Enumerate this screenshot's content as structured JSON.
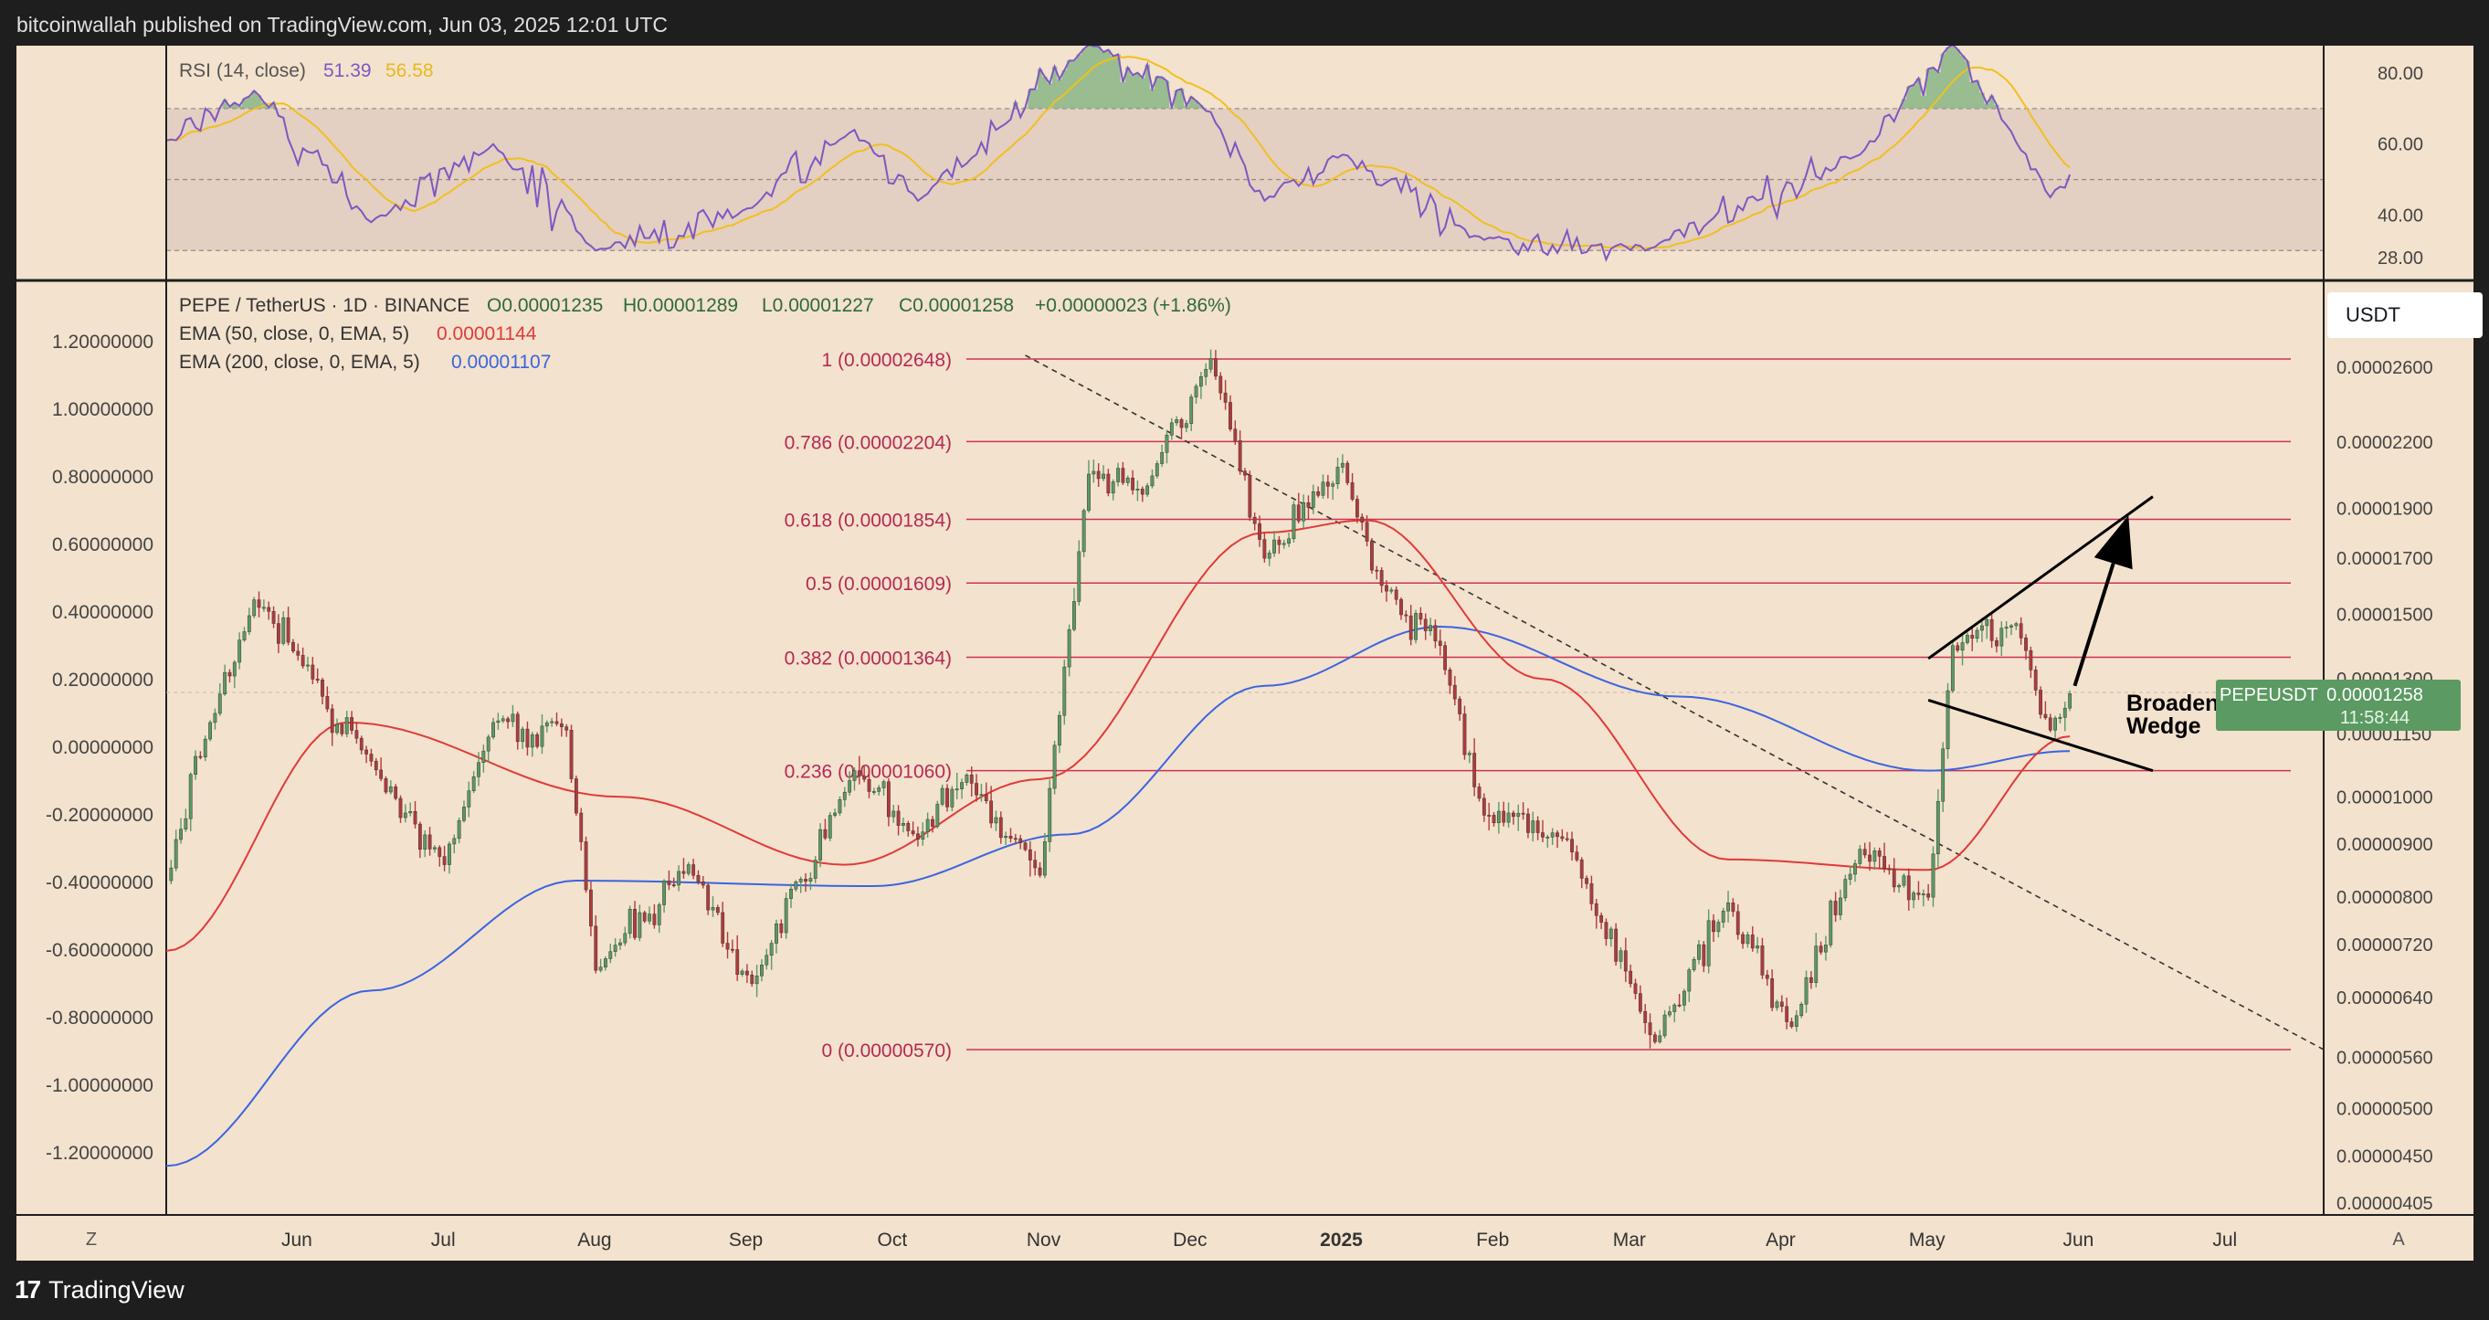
{
  "header": {
    "publisher_line": "bitcoinwallah published on TradingView.com, Jun 03, 2025 12:01 UTC"
  },
  "footer": {
    "brand": "TradingView",
    "brand_mark": "17"
  },
  "rsi_panel": {
    "label": "RSI (14, close)",
    "rsi_value": "51.39",
    "ma_value": "56.58",
    "axis_ticks": [
      "80.00",
      "60.00",
      "40.00",
      "28.00"
    ]
  },
  "main_legend": {
    "symbol": "PEPE / TetherUS · 1D · BINANCE",
    "open": "O0.00001235",
    "high": "H0.00001289",
    "low": "L0.00001227",
    "close": "C0.00001258",
    "change": "+0.00000023 (+1.86%)",
    "ema50_label": "EMA (50, close, 0, EMA, 5)",
    "ema50_value": "0.00001144",
    "ema200_label": "EMA (200, close, 0, EMA, 5)",
    "ema200_value": "0.00001107"
  },
  "left_axis_ticks": [
    "1.20000000",
    "1.00000000",
    "0.80000000",
    "0.60000000",
    "0.40000000",
    "0.20000000",
    "0.00000000",
    "-0.20000000",
    "-0.40000000",
    "-0.60000000",
    "-0.80000000",
    "-1.00000000",
    "-1.20000000"
  ],
  "right_axis": {
    "currency": "USDT",
    "ticks": [
      "0.00002600",
      "0.00002200",
      "0.00001900",
      "0.00001700",
      "0.00001500",
      "0.00001300",
      "0.00001150",
      "0.00001000",
      "0.00000900",
      "0.00000800",
      "0.00000720",
      "0.00000640",
      "0.00000560",
      "0.00000500",
      "0.00000450",
      "0.00000405"
    ],
    "price_tag_symbol": "PEPEUSDT",
    "price_tag_value": "0.00001258",
    "price_tag_countdown": "11:58:44"
  },
  "x_axis": {
    "labels": [
      "Jun",
      "Jul",
      "Aug",
      "Sep",
      "Oct",
      "Nov",
      "Dec",
      "2025",
      "Feb",
      "Mar",
      "Apr",
      "May",
      "Jun",
      "Jul"
    ],
    "left_button": "Z",
    "right_button": "A"
  },
  "fib_levels": [
    {
      "label": "1 (0.00002648)",
      "ratio": 1,
      "price": 2.648e-05
    },
    {
      "label": "0.786 (0.00002204)",
      "ratio": 0.786,
      "price": 2.204e-05
    },
    {
      "label": "0.618 (0.00001854)",
      "ratio": 0.618,
      "price": 1.854e-05
    },
    {
      "label": "0.5 (0.00001609)",
      "ratio": 0.5,
      "price": 1.609e-05
    },
    {
      "label": "0.382 (0.00001364)",
      "ratio": 0.382,
      "price": 1.364e-05
    },
    {
      "label": "0.236 (0.00001060)",
      "ratio": 0.236,
      "price": 1.06e-05
    },
    {
      "label": "0 (0.00000570)",
      "ratio": 0,
      "price": 5.7e-06
    }
  ],
  "annotation": {
    "line1": "Broadening",
    "line2": "Wedge"
  },
  "colors": {
    "background": "#f3e2cd",
    "up_candle": "#5b9a62",
    "down_candle": "#b33a3a",
    "ema50": "#e03a3a",
    "ema200": "#3b64e0",
    "fib": "#cc3355",
    "rsi": "#7e57c2",
    "rsi_ma": "#f0c020",
    "price_tag": "#5b9a62"
  },
  "chart_data": {
    "type": "candlestick",
    "symbol": "PEPE / TetherUS",
    "interval": "1D",
    "exchange": "BINANCE",
    "y_scale": "log",
    "ylim": [
      4.05e-06,
      2.85e-05
    ],
    "x_range": [
      "2024-05-09",
      "2025-07-25"
    ],
    "last_close": 1.258e-05,
    "swing_points": [
      {
        "date": "2024-05-09",
        "close": 8.3e-06
      },
      {
        "date": "2024-05-18",
        "close": 1.18e-05
      },
      {
        "date": "2024-05-27",
        "close": 1.55e-05
      },
      {
        "date": "2024-06-05",
        "close": 1.37e-05
      },
      {
        "date": "2024-06-18",
        "close": 1.11e-05
      },
      {
        "date": "2024-07-05",
        "close": 8.6e-06
      },
      {
        "date": "2024-07-15",
        "close": 1.18e-05
      },
      {
        "date": "2024-07-30",
        "close": 1.16e-05
      },
      {
        "date": "2024-08-05",
        "close": 6.8e-06
      },
      {
        "date": "2024-08-24",
        "close": 8.6e-06
      },
      {
        "date": "2024-09-06",
        "close": 6.6e-06
      },
      {
        "date": "2024-09-27",
        "close": 1.06e-05
      },
      {
        "date": "2024-10-10",
        "close": 9.1e-06
      },
      {
        "date": "2024-10-20",
        "close": 1.05e-05
      },
      {
        "date": "2024-11-04",
        "close": 8.4e-06
      },
      {
        "date": "2024-11-14",
        "close": 2.05e-05
      },
      {
        "date": "2024-11-25",
        "close": 1.96e-05
      },
      {
        "date": "2024-12-09",
        "close": 2.65e-05
      },
      {
        "date": "2024-12-20",
        "close": 1.7e-05
      },
      {
        "date": "2025-01-05",
        "close": 2.1e-05
      },
      {
        "date": "2025-01-13",
        "close": 1.6e-05
      },
      {
        "date": "2025-01-25",
        "close": 1.4e-05
      },
      {
        "date": "2025-02-03",
        "close": 9.6e-06
      },
      {
        "date": "2025-02-20",
        "close": 9.1e-06
      },
      {
        "date": "2025-03-10",
        "close": 5.8e-06
      },
      {
        "date": "2025-03-25",
        "close": 7.9e-06
      },
      {
        "date": "2025-04-07",
        "close": 6e-06
      },
      {
        "date": "2025-04-21",
        "close": 8.9e-06
      },
      {
        "date": "2025-05-05",
        "close": 8e-06
      },
      {
        "date": "2025-05-10",
        "close": 1.4e-05
      },
      {
        "date": "2025-05-23",
        "close": 1.47e-05
      },
      {
        "date": "2025-05-30",
        "close": 1.16e-05
      },
      {
        "date": "2025-06-03",
        "close": 1.258e-05
      }
    ],
    "ema50": [
      {
        "date": "2024-05-09",
        "value": 7.1e-06
      },
      {
        "date": "2024-06-15",
        "value": 1.18e-05
      },
      {
        "date": "2024-08-10",
        "value": 1e-05
      },
      {
        "date": "2024-09-25",
        "value": 8.6e-06
      },
      {
        "date": "2024-11-04",
        "value": 1.04e-05
      },
      {
        "date": "2024-12-20",
        "value": 1.8e-05
      },
      {
        "date": "2025-01-10",
        "value": 1.85e-05
      },
      {
        "date": "2025-02-15",
        "value": 1.3e-05
      },
      {
        "date": "2025-03-25",
        "value": 8.7e-06
      },
      {
        "date": "2025-05-05",
        "value": 8.5e-06
      },
      {
        "date": "2025-06-03",
        "value": 1.144e-05
      }
    ],
    "ema200": [
      {
        "date": "2024-05-09",
        "value": 4.4e-06
      },
      {
        "date": "2024-06-20",
        "value": 6.5e-06
      },
      {
        "date": "2024-08-01",
        "value": 8.3e-06
      },
      {
        "date": "2024-10-01",
        "value": 8.2e-06
      },
      {
        "date": "2024-11-10",
        "value": 9.2e-06
      },
      {
        "date": "2024-12-20",
        "value": 1.28e-05
      },
      {
        "date": "2025-01-25",
        "value": 1.46e-05
      },
      {
        "date": "2025-03-15",
        "value": 1.25e-05
      },
      {
        "date": "2025-05-05",
        "value": 1.06e-05
      },
      {
        "date": "2025-06-03",
        "value": 1.107e-05
      }
    ],
    "rsi": [
      {
        "date": "2024-05-09",
        "value": 61
      },
      {
        "date": "2024-05-27",
        "value": 75
      },
      {
        "date": "2024-06-20",
        "value": 38
      },
      {
        "date": "2024-07-15",
        "value": 60
      },
      {
        "date": "2024-08-05",
        "value": 30
      },
      {
        "date": "2024-09-06",
        "value": 42
      },
      {
        "date": "2024-09-27",
        "value": 64
      },
      {
        "date": "2024-10-10",
        "value": 44
      },
      {
        "date": "2024-11-14",
        "value": 88
      },
      {
        "date": "2024-12-09",
        "value": 69
      },
      {
        "date": "2024-12-20",
        "value": 44
      },
      {
        "date": "2025-01-05",
        "value": 57
      },
      {
        "date": "2025-02-03",
        "value": 33
      },
      {
        "date": "2025-03-10",
        "value": 31
      },
      {
        "date": "2025-04-21",
        "value": 57
      },
      {
        "date": "2025-05-10",
        "value": 88
      },
      {
        "date": "2025-05-30",
        "value": 45
      },
      {
        "date": "2025-06-03",
        "value": 51.39
      }
    ],
    "rsi_ma_last": 56.58,
    "rsi_bands": [
      70,
      50,
      30
    ],
    "fib_retracement": {
      "from_price": 2.648e-05,
      "to_price": 5.7e-06
    },
    "downtrend_line": {
      "start": {
        "date": "2024-11-01",
        "price": 2.67e-05
      },
      "end": {
        "date": "2025-07-25",
        "price": 5.7e-06
      }
    },
    "wedge_upper": {
      "start": {
        "date": "2025-05-05",
        "price": 1.36e-05
      },
      "end": {
        "date": "2025-06-20",
        "price": 1.95e-05
      }
    },
    "wedge_lower": {
      "start": {
        "date": "2025-05-05",
        "price": 1.24e-05
      },
      "end": {
        "date": "2025-06-20",
        "price": 1.06e-05
      }
    },
    "projection_arrow": {
      "start": {
        "date": "2025-06-04",
        "price": 1.28e-05
      },
      "end": {
        "date": "2025-06-15",
        "price": 1.87e-05
      }
    }
  }
}
